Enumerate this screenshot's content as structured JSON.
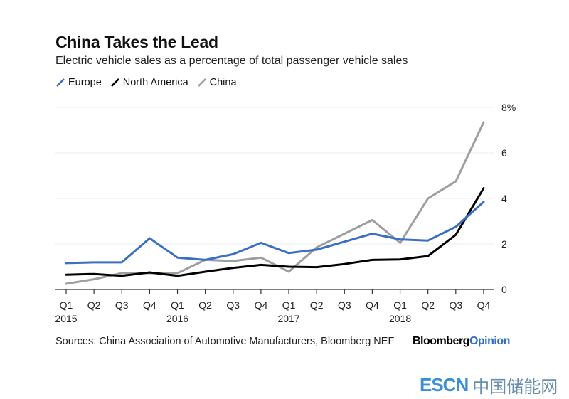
{
  "header": {
    "title": "China Takes the Lead",
    "subtitle": "Electric vehicle sales as a percentage of total passenger vehicle sales"
  },
  "footer": {
    "sources": "Sources: China Association of Automotive Manufacturers, Bloomberg NEF",
    "brand_part1": "Bloomberg",
    "brand_part2": "Opinion"
  },
  "watermark": {
    "latin": "ESCN",
    "chinese": "中国储能网"
  },
  "colors": {
    "Europe": "#3a6fc4",
    "North America": "#000000",
    "China": "#9e9e9e",
    "grid": "#eeeeee",
    "axis": "#333333"
  },
  "chart_data": {
    "type": "line",
    "title": "China Takes the Lead",
    "subtitle": "Electric vehicle sales as a percentage of total passenger vehicle sales",
    "xlabel": "",
    "ylabel": "",
    "x": [
      "Q1 2015",
      "Q2 2015",
      "Q3 2015",
      "Q4 2015",
      "Q1 2016",
      "Q2 2016",
      "Q3 2016",
      "Q4 2016",
      "Q1 2017",
      "Q2 2017",
      "Q3 2017",
      "Q4 2017",
      "Q1 2018",
      "Q2 2018",
      "Q3 2018",
      "Q4 2018"
    ],
    "x_tick_labels": [
      {
        "q": "Q1",
        "year": "2015"
      },
      {
        "q": "Q2",
        "year": ""
      },
      {
        "q": "Q3",
        "year": ""
      },
      {
        "q": "Q4",
        "year": ""
      },
      {
        "q": "Q1",
        "year": "2016"
      },
      {
        "q": "Q2",
        "year": ""
      },
      {
        "q": "Q3",
        "year": ""
      },
      {
        "q": "Q4",
        "year": ""
      },
      {
        "q": "Q1",
        "year": "2017"
      },
      {
        "q": "Q2",
        "year": ""
      },
      {
        "q": "Q3",
        "year": ""
      },
      {
        "q": "Q4",
        "year": ""
      },
      {
        "q": "Q1",
        "year": "2018"
      },
      {
        "q": "Q2",
        "year": ""
      },
      {
        "q": "Q3",
        "year": ""
      },
      {
        "q": "Q4",
        "year": ""
      }
    ],
    "y_ticks": [
      0,
      2,
      4,
      6,
      8
    ],
    "y_tick_labels": [
      "0",
      "2",
      "4",
      "6",
      "8%"
    ],
    "ylim": [
      0,
      8
    ],
    "grid": true,
    "y_axis_side": "right",
    "legend_position": "top-left",
    "series": [
      {
        "name": "Europe",
        "values": [
          1.16,
          1.19,
          1.19,
          2.25,
          1.4,
          1.3,
          1.55,
          2.05,
          1.6,
          1.75,
          2.1,
          2.45,
          2.2,
          2.15,
          2.75,
          3.85
        ]
      },
      {
        "name": "North America",
        "values": [
          0.65,
          0.68,
          0.6,
          0.75,
          0.6,
          0.78,
          0.95,
          1.08,
          1.0,
          0.98,
          1.12,
          1.3,
          1.32,
          1.47,
          2.4,
          4.45
        ]
      },
      {
        "name": "China",
        "values": [
          0.25,
          0.45,
          0.72,
          0.72,
          0.72,
          1.3,
          1.25,
          1.4,
          0.78,
          1.85,
          2.45,
          3.05,
          2.05,
          4.0,
          4.75,
          7.35
        ]
      }
    ]
  }
}
